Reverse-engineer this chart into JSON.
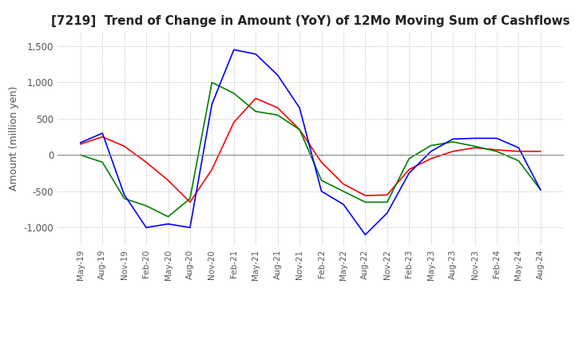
{
  "title": "[7219]  Trend of Change in Amount (YoY) of 12Mo Moving Sum of Cashflows",
  "ylabel": "Amount (million yen)",
  "x_labels": [
    "May-19",
    "Aug-19",
    "Nov-19",
    "Feb-20",
    "May-20",
    "Aug-20",
    "Nov-20",
    "Feb-21",
    "May-21",
    "Aug-21",
    "Nov-21",
    "Feb-22",
    "May-22",
    "Aug-22",
    "Nov-22",
    "Feb-23",
    "May-23",
    "Aug-23",
    "Nov-23",
    "Feb-24",
    "May-24",
    "Aug-24"
  ],
  "operating": [
    150,
    250,
    120,
    -100,
    -350,
    -650,
    -200,
    450,
    780,
    650,
    350,
    -100,
    -400,
    -560,
    -550,
    -200,
    -50,
    50,
    100,
    70,
    50,
    50
  ],
  "investing": [
    0,
    -100,
    -600,
    -700,
    -850,
    -600,
    1000,
    850,
    600,
    550,
    350,
    -350,
    -500,
    -650,
    -650,
    -50,
    130,
    180,
    120,
    50,
    -80,
    -480
  ],
  "free": [
    170,
    300,
    -550,
    -1000,
    -950,
    -1000,
    700,
    1450,
    1390,
    1100,
    650,
    -500,
    -680,
    -1100,
    -800,
    -250,
    50,
    220,
    230,
    230,
    100,
    -480
  ],
  "ylim": [
    -1250,
    1700
  ],
  "yticks": [
    -1000,
    -500,
    0,
    500,
    1000,
    1500
  ],
  "operating_color": "#ff0000",
  "investing_color": "#008000",
  "free_color": "#0000ff",
  "background_color": "#ffffff",
  "grid_color": "#aaaaaa"
}
